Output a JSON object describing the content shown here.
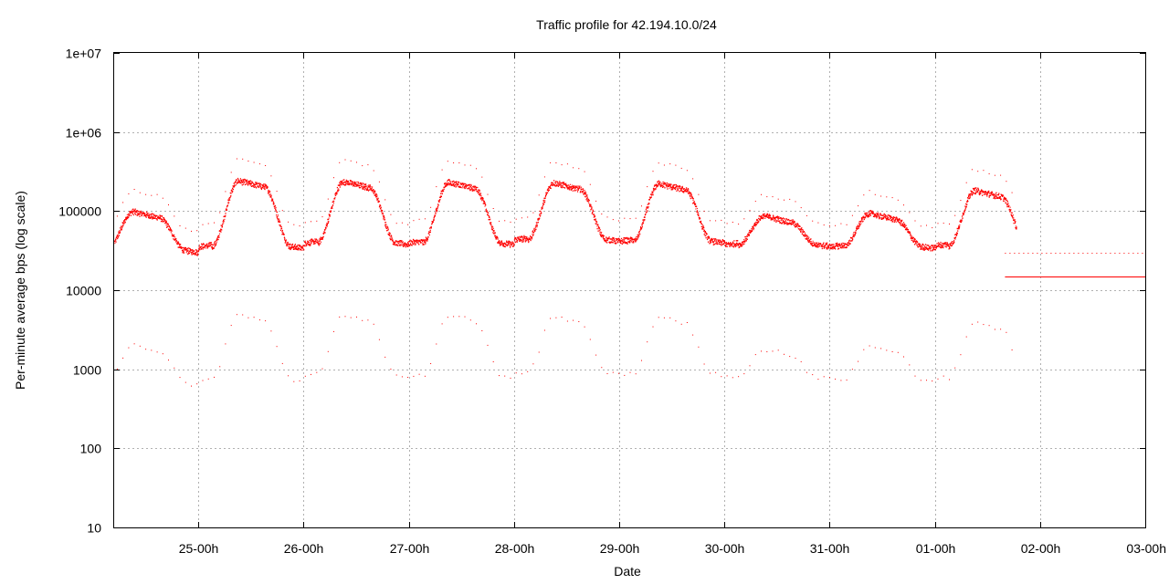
{
  "chart_data": {
    "type": "scatter",
    "title": "Traffic profile for 42.194.10.0/24",
    "xlabel": "Date",
    "ylabel": "Per-minute average bps (log scale)",
    "yscale": "log",
    "ylim": [
      10,
      10000000
    ],
    "y_ticks": [
      {
        "value": 10,
        "label": "10"
      },
      {
        "value": 100,
        "label": "100"
      },
      {
        "value": 1000,
        "label": "1000"
      },
      {
        "value": 10000,
        "label": "10000"
      },
      {
        "value": 100000,
        "label": "100000"
      },
      {
        "value": 1000000,
        "label": "1e+06"
      },
      {
        "value": 10000000,
        "label": "1e+07"
      }
    ],
    "xlim_hours": [
      -19.2,
      216
    ],
    "x_ticks": [
      {
        "hours": 0,
        "label": "25-00h"
      },
      {
        "hours": 24,
        "label": "26-00h"
      },
      {
        "hours": 48,
        "label": "27-00h"
      },
      {
        "hours": 72,
        "label": "28-00h"
      },
      {
        "hours": 96,
        "label": "29-00h"
      },
      {
        "hours": 120,
        "label": "30-00h"
      },
      {
        "hours": 144,
        "label": "31-00h"
      },
      {
        "hours": 168,
        "label": "01-00h"
      },
      {
        "hours": 192,
        "label": "02-00h"
      },
      {
        "hours": 216,
        "label": "03-00h"
      }
    ],
    "grid": true,
    "legend": "none",
    "series_color": "#ff0000",
    "daily_profile": [
      {
        "day_start_hours": -24,
        "low_bps": 32000,
        "high_bps": 100000
      },
      {
        "day_start_hours": 0,
        "low_bps": 36000,
        "high_bps": 245000
      },
      {
        "day_start_hours": 24,
        "low_bps": 40000,
        "high_bps": 240000
      },
      {
        "day_start_hours": 48,
        "low_bps": 40000,
        "high_bps": 235000
      },
      {
        "day_start_hours": 72,
        "low_bps": 44000,
        "high_bps": 230000
      },
      {
        "day_start_hours": 96,
        "low_bps": 42000,
        "high_bps": 225000
      },
      {
        "day_start_hours": 120,
        "low_bps": 38000,
        "high_bps": 88000
      },
      {
        "day_start_hours": 144,
        "low_bps": 36000,
        "high_bps": 95000
      },
      {
        "day_start_hours": 168,
        "low_bps": 37000,
        "high_bps": 185000
      }
    ],
    "data_end_hours": 186.5,
    "tail_segment": {
      "x_start_hours": 184,
      "x_end_hours": 216,
      "value_bps": 15000,
      "upper_dots_bps": 30000
    }
  }
}
